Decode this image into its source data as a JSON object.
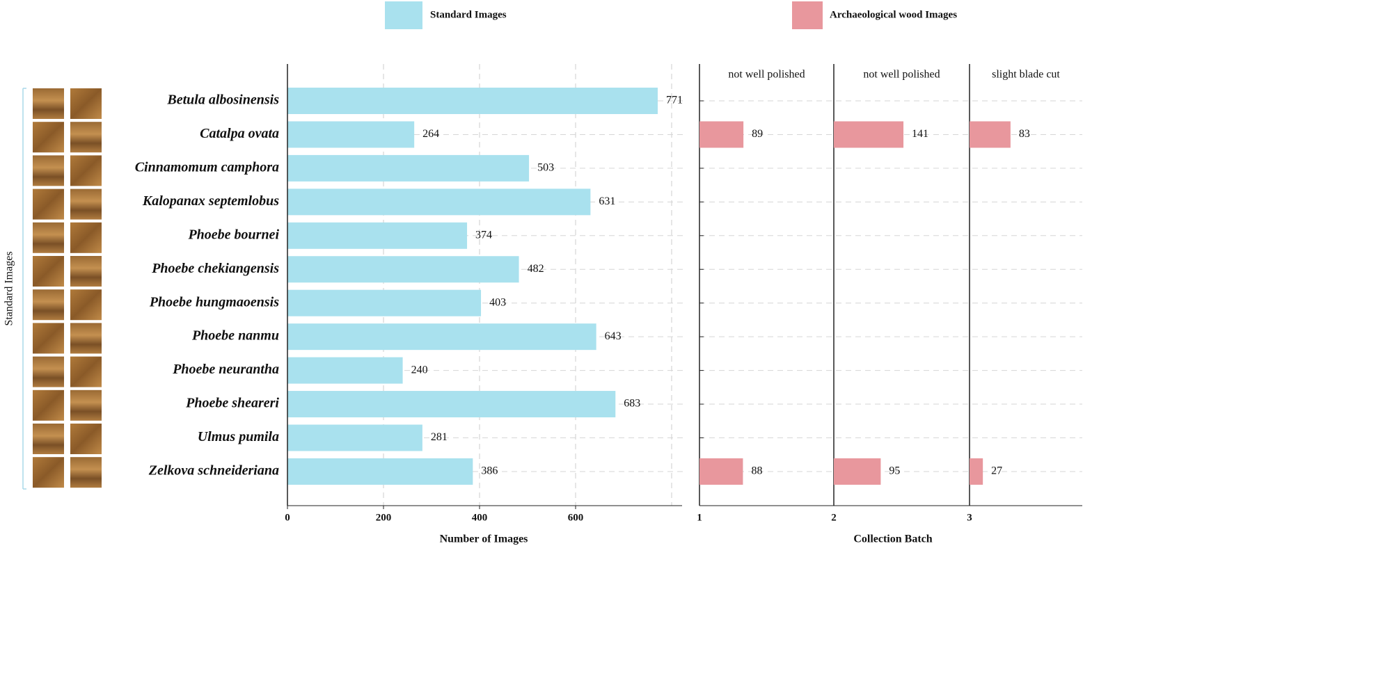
{
  "side_label": "Standard Images",
  "chart_data": [
    {
      "type": "barh",
      "xlabel": "Number of Images",
      "categories": [
        "Betula albosinensis",
        "Catalpa ovata",
        "Cinnamomum camphora",
        "Kalopanax septemlobus",
        "Phoebe bournei",
        "Phoebe chekiangensis",
        "Phoebe hungmaoensis",
        "Phoebe nanmu",
        "Phoebe neurantha",
        "Phoebe sheareri",
        "Ulmus pumila",
        "Zelkova schneideriana"
      ],
      "series": [
        {
          "name": "Standard Images",
          "color": "#a9e1ee",
          "values": [
            771,
            264,
            503,
            631,
            374,
            482,
            403,
            643,
            240,
            683,
            281,
            386
          ]
        }
      ],
      "xlim": [
        0,
        800
      ],
      "xticks": [
        0,
        200,
        400,
        600
      ],
      "grid": true
    },
    {
      "type": "barh_panels",
      "xlabel": "Collection Batch",
      "legend": "Archaeological wood Images",
      "color": "#e8979d",
      "xlim": [
        0,
        272
      ],
      "panels": [
        {
          "tick": 1,
          "note": "not well polished",
          "values": [
            null,
            89,
            null,
            null,
            null,
            null,
            null,
            null,
            null,
            null,
            null,
            88
          ]
        },
        {
          "tick": 2,
          "note": "not well polished",
          "values": [
            null,
            141,
            null,
            null,
            null,
            null,
            null,
            null,
            null,
            null,
            null,
            95
          ]
        },
        {
          "tick": 3,
          "note": "slight blade cut",
          "values": [
            null,
            83,
            null,
            null,
            null,
            null,
            null,
            null,
            null,
            null,
            null,
            27
          ]
        }
      ]
    }
  ]
}
